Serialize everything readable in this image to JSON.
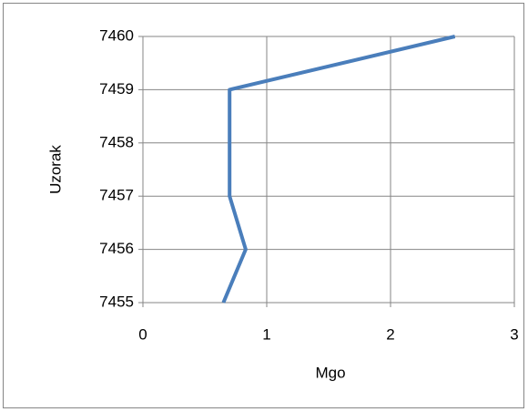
{
  "chart_data": {
    "type": "line",
    "color": "#4a7ebb",
    "x": [
      0.65,
      0.83,
      0.7,
      0.7,
      0.7,
      2.52
    ],
    "values": [
      7455,
      7456,
      7457,
      7458,
      7459,
      7460
    ],
    "xlabel": "Mgo",
    "ylabel": "Uzorak",
    "xlim": [
      0,
      3
    ],
    "xticks": [
      0,
      1,
      2,
      3
    ],
    "ylim": [
      7455,
      7460
    ],
    "yticks": [
      7455,
      7456,
      7457,
      7458,
      7459,
      7460
    ],
    "grid": true
  }
}
